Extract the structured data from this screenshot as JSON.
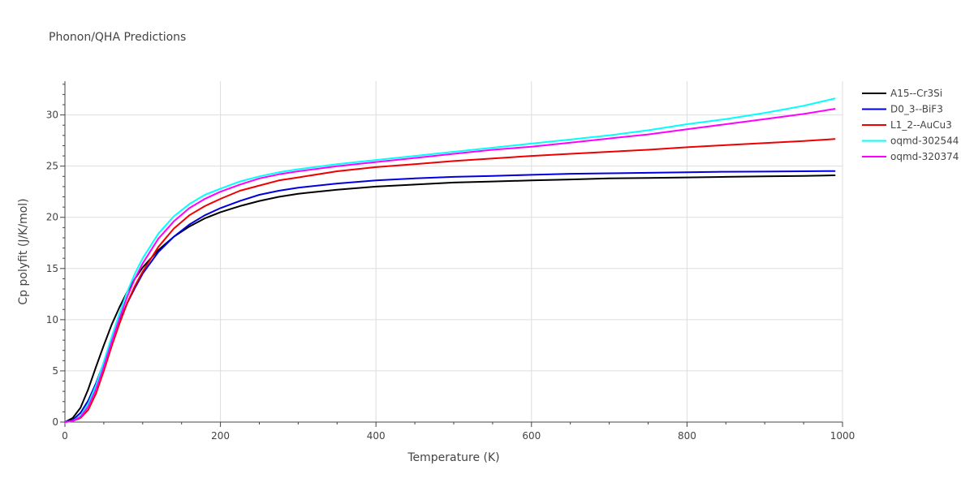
{
  "chart_data": {
    "type": "line",
    "title": "Phonon/QHA Predictions",
    "xlabel": "Temperature (K)",
    "ylabel": "Cp polyfit (J/K/mol)",
    "xlim": [
      0,
      1000
    ],
    "ylim": [
      0,
      33.3
    ],
    "xticks": [
      0,
      200,
      400,
      600,
      800,
      1000
    ],
    "yticks": [
      0,
      5,
      10,
      15,
      20,
      25,
      30
    ],
    "grid": true,
    "legend_position": "top-right",
    "series": [
      {
        "name": "A15--Cr3Si",
        "color": "#000000",
        "x": [
          0,
          10,
          20,
          30,
          40,
          50,
          60,
          70,
          80,
          90,
          100,
          120,
          140,
          160,
          180,
          200,
          225,
          250,
          275,
          300,
          350,
          400,
          450,
          500,
          550,
          600,
          650,
          700,
          750,
          800,
          850,
          900,
          950,
          990
        ],
        "y": [
          0,
          0.4,
          1.4,
          3.2,
          5.4,
          7.5,
          9.5,
          11.2,
          12.7,
          14.0,
          15.1,
          16.8,
          18.1,
          19.1,
          19.9,
          20.5,
          21.1,
          21.6,
          22.0,
          22.3,
          22.7,
          23.0,
          23.2,
          23.4,
          23.5,
          23.6,
          23.7,
          23.8,
          23.85,
          23.9,
          23.95,
          24.0,
          24.05,
          24.1
        ]
      },
      {
        "name": "D0_3--BiF3",
        "color": "#0000dd",
        "x": [
          0,
          10,
          20,
          30,
          40,
          50,
          60,
          70,
          80,
          90,
          100,
          120,
          140,
          160,
          180,
          200,
          225,
          250,
          275,
          300,
          350,
          400,
          450,
          500,
          550,
          600,
          650,
          700,
          750,
          800,
          850,
          900,
          950,
          990
        ],
        "y": [
          0,
          0.2,
          0.9,
          2.1,
          3.8,
          5.8,
          7.8,
          9.8,
          11.6,
          13.1,
          14.5,
          16.6,
          18.1,
          19.3,
          20.2,
          20.9,
          21.6,
          22.2,
          22.6,
          22.9,
          23.3,
          23.6,
          23.8,
          23.95,
          24.05,
          24.15,
          24.25,
          24.3,
          24.35,
          24.4,
          24.45,
          24.47,
          24.5,
          24.52
        ]
      },
      {
        "name": "L1_2--AuCu3",
        "color": "#ee0000",
        "x": [
          0,
          10,
          20,
          30,
          40,
          50,
          60,
          70,
          80,
          90,
          100,
          120,
          140,
          160,
          180,
          200,
          225,
          250,
          275,
          300,
          350,
          400,
          450,
          500,
          550,
          600,
          650,
          700,
          750,
          800,
          850,
          900,
          950,
          990
        ],
        "y": [
          0,
          0.1,
          0.4,
          1.2,
          2.8,
          5.0,
          7.4,
          9.6,
          11.6,
          13.3,
          14.7,
          17.1,
          18.9,
          20.2,
          21.1,
          21.8,
          22.6,
          23.1,
          23.6,
          23.9,
          24.5,
          24.9,
          25.2,
          25.5,
          25.75,
          26.0,
          26.2,
          26.4,
          26.6,
          26.85,
          27.05,
          27.25,
          27.45,
          27.65
        ]
      },
      {
        "name": "oqmd-302544",
        "color": "#00ffff",
        "x": [
          0,
          10,
          20,
          30,
          40,
          50,
          60,
          70,
          80,
          90,
          100,
          120,
          140,
          160,
          180,
          200,
          225,
          250,
          275,
          300,
          350,
          400,
          450,
          500,
          550,
          600,
          650,
          700,
          750,
          800,
          850,
          900,
          950,
          990
        ],
        "y": [
          0,
          0.1,
          0.6,
          1.8,
          3.6,
          5.9,
          8.3,
          10.6,
          12.7,
          14.5,
          16.0,
          18.4,
          20.1,
          21.3,
          22.2,
          22.8,
          23.5,
          24.0,
          24.4,
          24.7,
          25.2,
          25.6,
          26.0,
          26.4,
          26.8,
          27.2,
          27.6,
          28.0,
          28.5,
          29.1,
          29.6,
          30.2,
          30.9,
          31.6
        ]
      },
      {
        "name": "oqmd-320374",
        "color": "#ff00ff",
        "x": [
          0,
          10,
          20,
          30,
          40,
          50,
          60,
          70,
          80,
          90,
          100,
          120,
          140,
          160,
          180,
          200,
          225,
          250,
          275,
          300,
          350,
          400,
          450,
          500,
          550,
          600,
          650,
          700,
          750,
          800,
          850,
          900,
          950,
          990
        ],
        "y": [
          0,
          0.1,
          0.5,
          1.5,
          3.2,
          5.4,
          7.8,
          10.1,
          12.2,
          14.0,
          15.5,
          17.9,
          19.6,
          20.9,
          21.8,
          22.5,
          23.2,
          23.8,
          24.2,
          24.5,
          25.0,
          25.4,
          25.8,
          26.2,
          26.6,
          26.9,
          27.3,
          27.7,
          28.1,
          28.6,
          29.1,
          29.6,
          30.1,
          30.6
        ]
      }
    ]
  }
}
